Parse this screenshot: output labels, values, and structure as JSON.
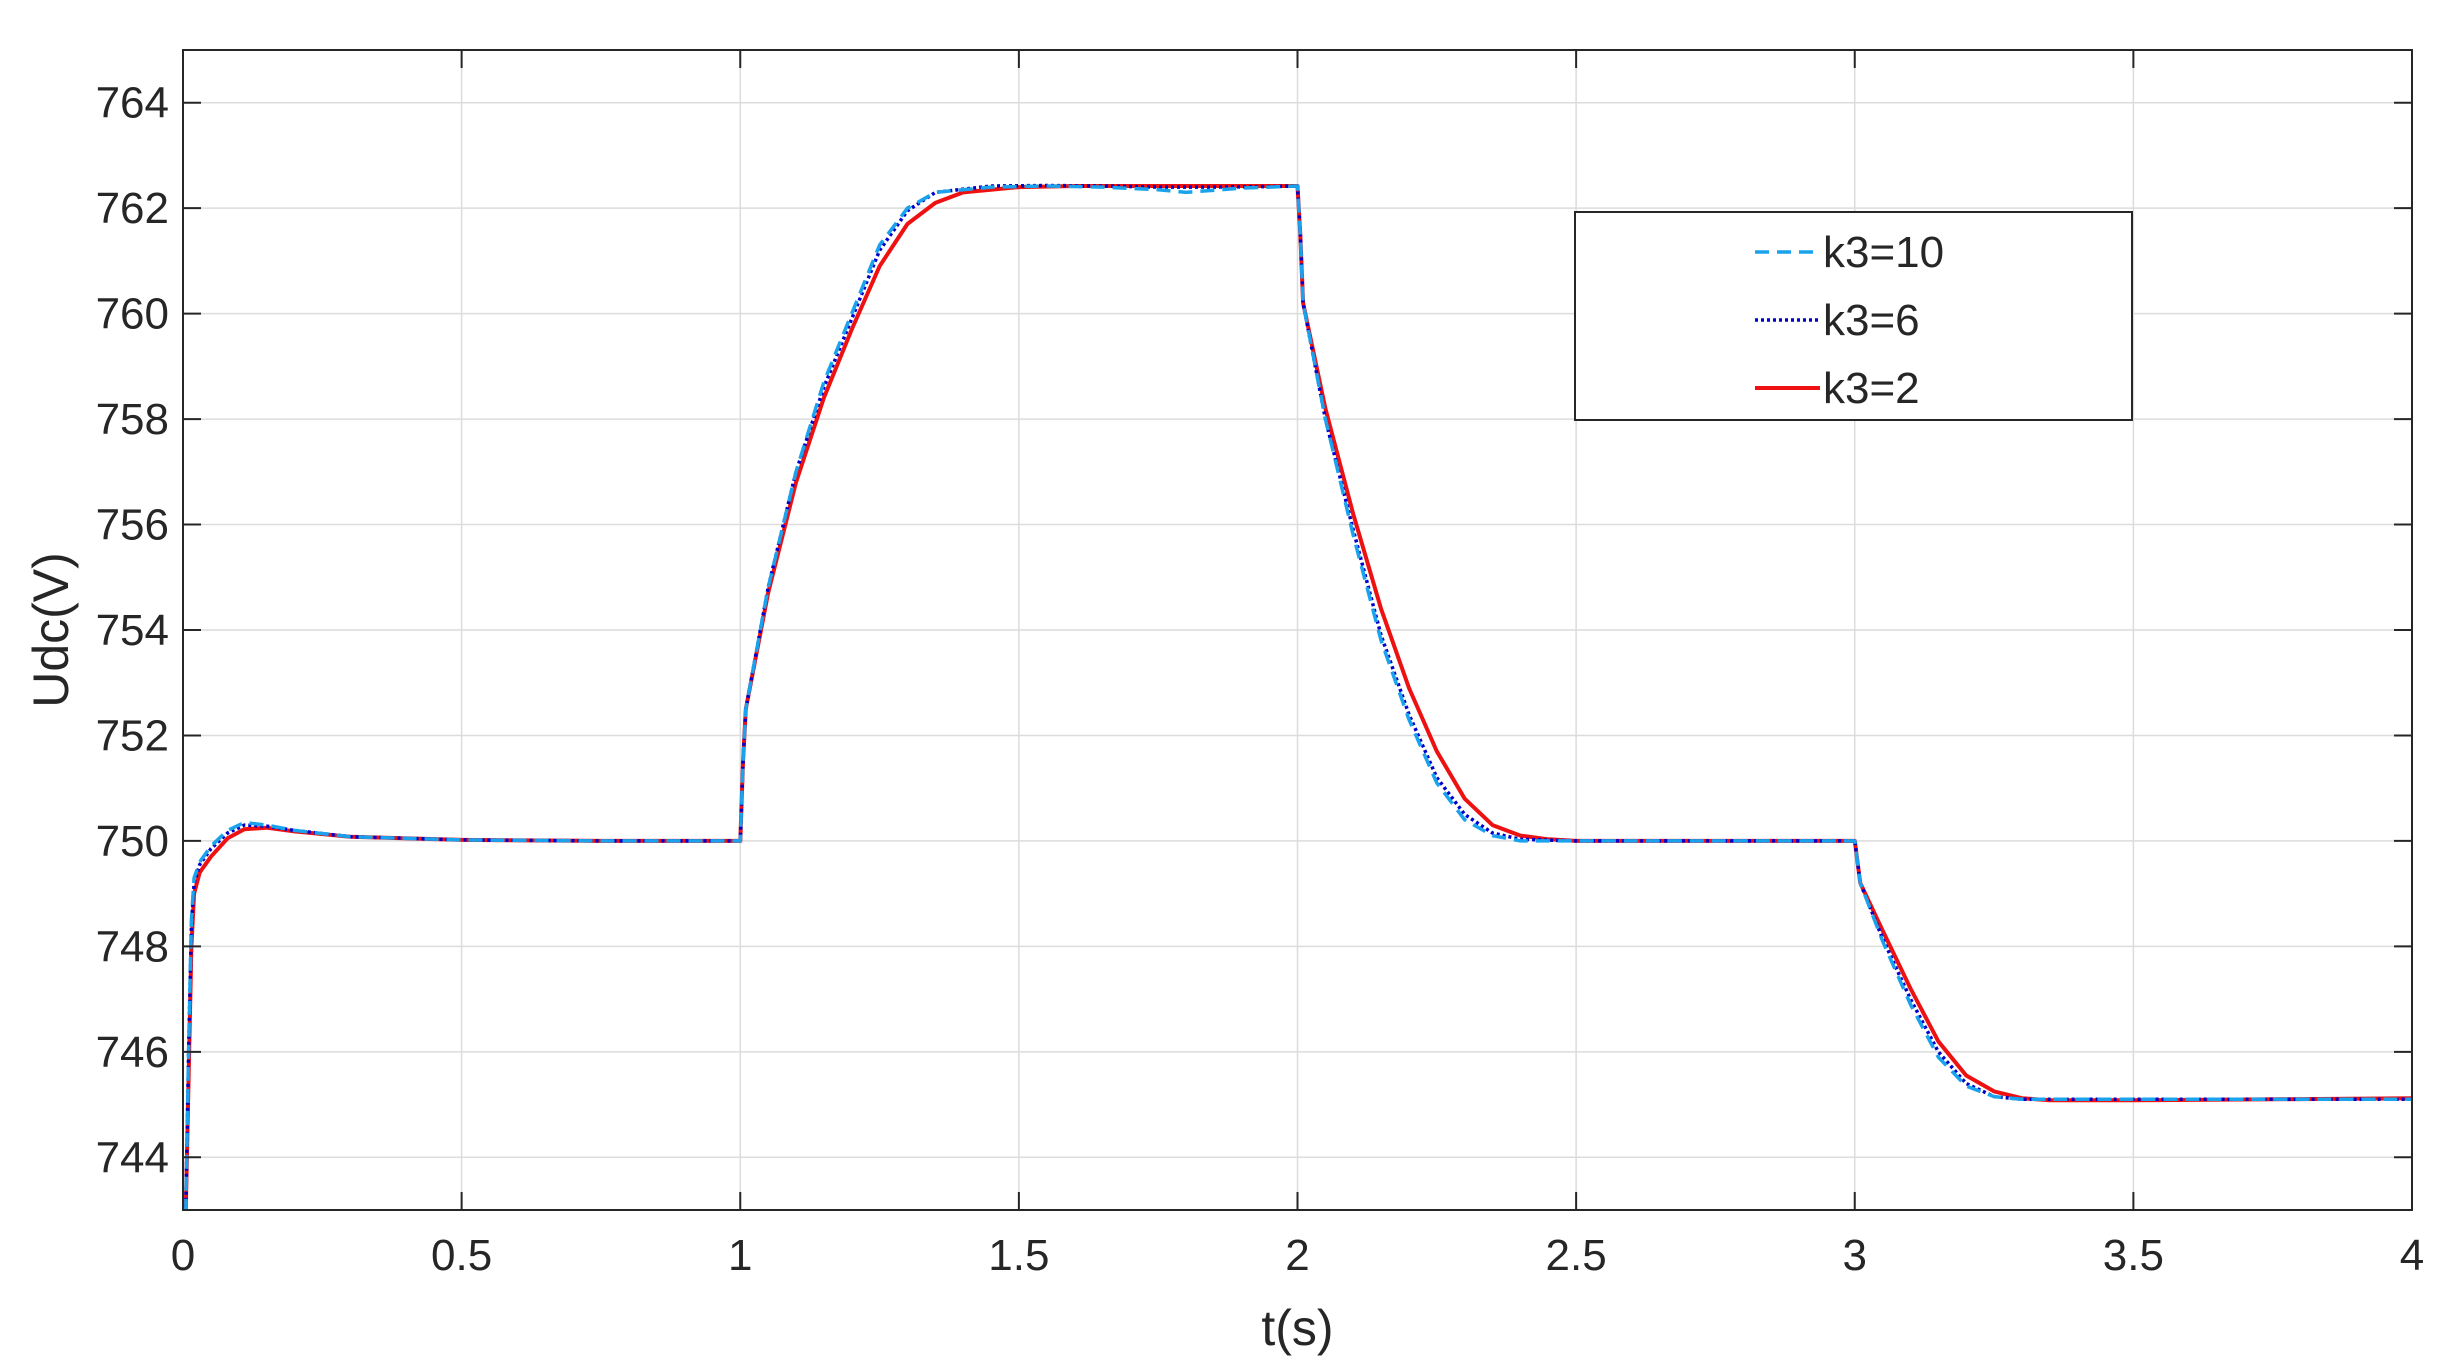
{
  "chart_data": {
    "type": "line",
    "title": "",
    "xlabel": "t(s)",
    "ylabel": "Udc(V)",
    "xlim": [
      0,
      4
    ],
    "ylim": [
      743,
      765
    ],
    "xticks": [
      0,
      0.5,
      1,
      1.5,
      2,
      2.5,
      3,
      3.5,
      4
    ],
    "xtick_labels": [
      "0",
      "0.5",
      "1",
      "1.5",
      "2",
      "2.5",
      "3",
      "3.5",
      "4"
    ],
    "yticks": [
      744,
      746,
      748,
      750,
      752,
      754,
      756,
      758,
      760,
      762,
      764
    ],
    "ytick_labels": [
      "744",
      "746",
      "748",
      "750",
      "752",
      "754",
      "756",
      "758",
      "760",
      "762",
      "764"
    ],
    "grid": true,
    "legend_position": "top-right",
    "series": [
      {
        "name": "k3=10",
        "color": "#1aa3ec",
        "style": "dashed",
        "points": [
          [
            0,
            743
          ],
          [
            0.005,
            743
          ],
          [
            0.01,
            746
          ],
          [
            0.015,
            748.5
          ],
          [
            0.02,
            749.3
          ],
          [
            0.03,
            749.6
          ],
          [
            0.05,
            749.9
          ],
          [
            0.08,
            750.2
          ],
          [
            0.11,
            750.35
          ],
          [
            0.15,
            750.3
          ],
          [
            0.2,
            750.2
          ],
          [
            0.3,
            750.08
          ],
          [
            0.5,
            750.02
          ],
          [
            0.75,
            750
          ],
          [
            1.0,
            750
          ],
          [
            1.005,
            751.5
          ],
          [
            1.01,
            752.5
          ],
          [
            1.05,
            754.8
          ],
          [
            1.1,
            757
          ],
          [
            1.15,
            758.7
          ],
          [
            1.2,
            760
          ],
          [
            1.25,
            761.3
          ],
          [
            1.3,
            762
          ],
          [
            1.35,
            762.3
          ],
          [
            1.45,
            762.4
          ],
          [
            1.55,
            762.42
          ],
          [
            1.65,
            762.4
          ],
          [
            1.75,
            762.35
          ],
          [
            1.8,
            762.3
          ],
          [
            1.9,
            762.38
          ],
          [
            1.95,
            762.4
          ],
          [
            2.0,
            762.42
          ],
          [
            2.005,
            761.5
          ],
          [
            2.01,
            760.2
          ],
          [
            2.05,
            758
          ],
          [
            2.1,
            755.8
          ],
          [
            2.15,
            753.8
          ],
          [
            2.2,
            752.3
          ],
          [
            2.25,
            751.1
          ],
          [
            2.3,
            750.4
          ],
          [
            2.35,
            750.1
          ],
          [
            2.4,
            750
          ],
          [
            2.5,
            750
          ],
          [
            2.75,
            750
          ],
          [
            3.0,
            750
          ],
          [
            3.005,
            749.6
          ],
          [
            3.01,
            749.2
          ],
          [
            3.05,
            748.1
          ],
          [
            3.1,
            746.9
          ],
          [
            3.15,
            745.9
          ],
          [
            3.2,
            745.35
          ],
          [
            3.25,
            745.15
          ],
          [
            3.3,
            745.1
          ],
          [
            3.5,
            745.1
          ],
          [
            3.75,
            745.1
          ],
          [
            4.0,
            745.1
          ]
        ]
      },
      {
        "name": "k3=6",
        "color": "#0000cc",
        "style": "dotted",
        "points": [
          [
            0,
            743
          ],
          [
            0.005,
            743
          ],
          [
            0.01,
            746
          ],
          [
            0.015,
            748.4
          ],
          [
            0.02,
            749.2
          ],
          [
            0.03,
            749.55
          ],
          [
            0.05,
            749.85
          ],
          [
            0.08,
            750.15
          ],
          [
            0.11,
            750.3
          ],
          [
            0.15,
            750.28
          ],
          [
            0.2,
            750.2
          ],
          [
            0.3,
            750.08
          ],
          [
            0.5,
            750.02
          ],
          [
            0.75,
            750
          ],
          [
            1.0,
            750
          ],
          [
            1.005,
            751.5
          ],
          [
            1.01,
            752.5
          ],
          [
            1.05,
            754.8
          ],
          [
            1.1,
            757
          ],
          [
            1.15,
            758.6
          ],
          [
            1.2,
            759.9
          ],
          [
            1.25,
            761.2
          ],
          [
            1.3,
            761.95
          ],
          [
            1.35,
            762.3
          ],
          [
            1.45,
            762.42
          ],
          [
            1.55,
            762.43
          ],
          [
            1.65,
            762.42
          ],
          [
            1.75,
            762.4
          ],
          [
            1.85,
            762.4
          ],
          [
            1.95,
            762.41
          ],
          [
            2.0,
            762.42
          ],
          [
            2.005,
            761.5
          ],
          [
            2.01,
            760.2
          ],
          [
            2.05,
            758
          ],
          [
            2.1,
            755.9
          ],
          [
            2.15,
            753.9
          ],
          [
            2.2,
            752.4
          ],
          [
            2.25,
            751.2
          ],
          [
            2.3,
            750.5
          ],
          [
            2.35,
            750.15
          ],
          [
            2.4,
            750.03
          ],
          [
            2.5,
            750
          ],
          [
            2.75,
            750
          ],
          [
            3.0,
            750
          ],
          [
            3.005,
            749.6
          ],
          [
            3.01,
            749.2
          ],
          [
            3.05,
            748.15
          ],
          [
            3.1,
            747
          ],
          [
            3.15,
            746
          ],
          [
            3.2,
            745.4
          ],
          [
            3.25,
            745.15
          ],
          [
            3.3,
            745.1
          ],
          [
            3.5,
            745.1
          ],
          [
            3.75,
            745.1
          ],
          [
            4.0,
            745.1
          ]
        ]
      },
      {
        "name": "k3=2",
        "color": "#ee1111",
        "style": "solid",
        "points": [
          [
            0,
            743
          ],
          [
            0.005,
            743
          ],
          [
            0.01,
            745.5
          ],
          [
            0.015,
            748
          ],
          [
            0.02,
            749
          ],
          [
            0.03,
            749.4
          ],
          [
            0.05,
            749.7
          ],
          [
            0.08,
            750.05
          ],
          [
            0.11,
            750.22
          ],
          [
            0.15,
            750.25
          ],
          [
            0.2,
            750.18
          ],
          [
            0.3,
            750.08
          ],
          [
            0.5,
            750.02
          ],
          [
            0.75,
            750
          ],
          [
            1.0,
            750
          ],
          [
            1.005,
            751.5
          ],
          [
            1.01,
            752.5
          ],
          [
            1.05,
            754.7
          ],
          [
            1.1,
            756.8
          ],
          [
            1.15,
            758.4
          ],
          [
            1.2,
            759.7
          ],
          [
            1.25,
            760.9
          ],
          [
            1.3,
            761.7
          ],
          [
            1.35,
            762.1
          ],
          [
            1.4,
            762.3
          ],
          [
            1.5,
            762.4
          ],
          [
            1.6,
            762.42
          ],
          [
            1.75,
            762.42
          ],
          [
            1.9,
            762.42
          ],
          [
            2.0,
            762.42
          ],
          [
            2.005,
            761.5
          ],
          [
            2.01,
            760.2
          ],
          [
            2.05,
            758.2
          ],
          [
            2.1,
            756.2
          ],
          [
            2.15,
            754.4
          ],
          [
            2.2,
            752.9
          ],
          [
            2.25,
            751.7
          ],
          [
            2.3,
            750.8
          ],
          [
            2.35,
            750.3
          ],
          [
            2.4,
            750.1
          ],
          [
            2.45,
            750.03
          ],
          [
            2.5,
            750
          ],
          [
            2.75,
            750
          ],
          [
            3.0,
            750
          ],
          [
            3.005,
            749.6
          ],
          [
            3.01,
            749.2
          ],
          [
            3.05,
            748.3
          ],
          [
            3.1,
            747.2
          ],
          [
            3.15,
            746.2
          ],
          [
            3.2,
            745.55
          ],
          [
            3.25,
            745.25
          ],
          [
            3.3,
            745.12
          ],
          [
            3.35,
            745.08
          ],
          [
            3.5,
            745.08
          ],
          [
            3.75,
            745.1
          ],
          [
            4.0,
            745.12
          ]
        ]
      }
    ]
  }
}
